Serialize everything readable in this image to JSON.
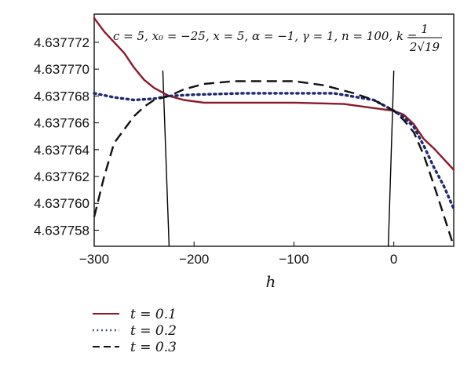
{
  "chart_data": {
    "type": "line",
    "xlabel": "h",
    "ylabel": "",
    "xlim": [
      -300,
      60
    ],
    "ylim": [
      4.6377568,
      4.6377741
    ],
    "grid": false,
    "legend_placement": "below",
    "annotation": {
      "params": "c = 5, x₀ = −25, x = 5, α = −1, γ = 1, n = 100, k =",
      "frac_num": "1",
      "frac_den": "2√19"
    },
    "x_ticks": [
      {
        "value": -300,
        "label": "−300"
      },
      {
        "value": -200,
        "label": "−200"
      },
      {
        "value": -100,
        "label": "−100"
      },
      {
        "value": 0,
        "label": "0"
      }
    ],
    "y_ticks": [
      {
        "value": 4.637758,
        "label": "4.637758"
      },
      {
        "value": 4.63776,
        "label": "4.637760"
      },
      {
        "value": 4.637762,
        "label": "4.637762"
      },
      {
        "value": 4.637764,
        "label": "4.637764"
      },
      {
        "value": 4.637766,
        "label": "4.637766"
      },
      {
        "value": 4.637768,
        "label": "4.637768"
      },
      {
        "value": 4.63777,
        "label": "4.637770"
      },
      {
        "value": 4.637772,
        "label": "4.637772"
      }
    ],
    "vertical_lines": [
      -225,
      0
    ],
    "series": [
      {
        "name": "t = 0.1",
        "color": "#8b1a2b",
        "dash": "solid",
        "points": [
          [
            -300,
            4.6377738
          ],
          [
            -290,
            4.6377728
          ],
          [
            -280,
            4.637772
          ],
          [
            -270,
            4.6377712
          ],
          [
            -260,
            4.6377701
          ],
          [
            -250,
            4.6377692
          ],
          [
            -240,
            4.6377686
          ],
          [
            -225,
            4.637768
          ],
          [
            -210,
            4.6377677
          ],
          [
            -190,
            4.6377675
          ],
          [
            -150,
            4.6377675
          ],
          [
            -100,
            4.6377675
          ],
          [
            -50,
            4.6377674
          ],
          [
            -20,
            4.6377671
          ],
          [
            0,
            4.6377669
          ],
          [
            10,
            4.6377666
          ],
          [
            20,
            4.6377659
          ],
          [
            30,
            4.6377648
          ],
          [
            40,
            4.6377641
          ],
          [
            50,
            4.6377633
          ],
          [
            60,
            4.6377625
          ]
        ]
      },
      {
        "name": "t = 0.2",
        "color": "#1f2a70",
        "dash": "dotted",
        "points": [
          [
            -300,
            4.6377682
          ],
          [
            -280,
            4.6377679
          ],
          [
            -260,
            4.6377677
          ],
          [
            -240,
            4.6377678
          ],
          [
            -225,
            4.637768
          ],
          [
            -200,
            4.6377681
          ],
          [
            -150,
            4.6377682
          ],
          [
            -100,
            4.6377682
          ],
          [
            -60,
            4.6377682
          ],
          [
            -20,
            4.6377677
          ],
          [
            0,
            4.6377669
          ],
          [
            10,
            4.6377664
          ],
          [
            20,
            4.6377657
          ],
          [
            30,
            4.6377643
          ],
          [
            40,
            4.6377627
          ],
          [
            50,
            4.6377613
          ],
          [
            60,
            4.6377596
          ]
        ]
      },
      {
        "name": "t = 0.3",
        "color": "#111111",
        "dash": "dashed",
        "points": [
          [
            -300,
            4.637759
          ],
          [
            -290,
            4.637762
          ],
          [
            -280,
            4.6377645
          ],
          [
            -270,
            4.6377655
          ],
          [
            -260,
            4.6377665
          ],
          [
            -250,
            4.6377672
          ],
          [
            -240,
            4.6377677
          ],
          [
            -225,
            4.637768
          ],
          [
            -210,
            4.6377685
          ],
          [
            -190,
            4.6377689
          ],
          [
            -160,
            4.6377691
          ],
          [
            -130,
            4.6377691
          ],
          [
            -100,
            4.6377691
          ],
          [
            -70,
            4.6377688
          ],
          [
            -40,
            4.6377682
          ],
          [
            -20,
            4.6377677
          ],
          [
            0,
            4.6377669
          ],
          [
            10,
            4.6377662
          ],
          [
            20,
            4.6377653
          ],
          [
            30,
            4.6377636
          ],
          [
            40,
            4.6377614
          ],
          [
            50,
            4.6377591
          ],
          [
            60,
            4.6377568
          ]
        ]
      }
    ]
  }
}
